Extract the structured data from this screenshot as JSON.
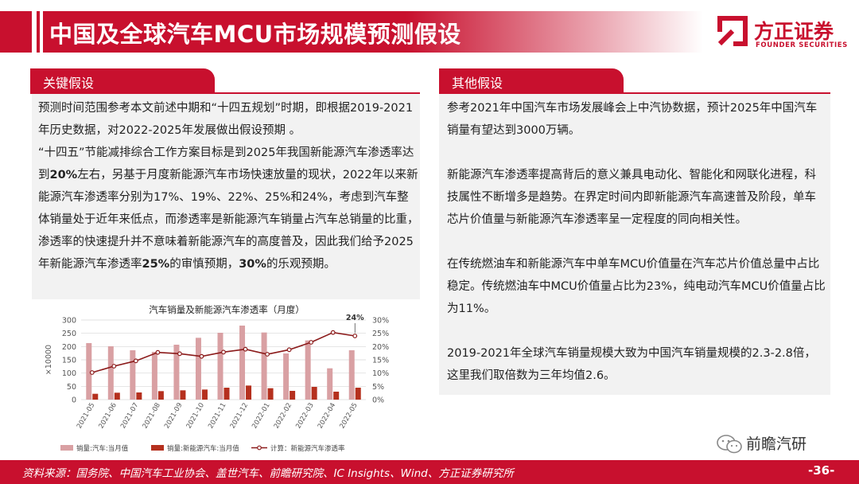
{
  "header": {
    "title": "中国及全球汽车MCU市场规模预测假设"
  },
  "logo": {
    "cn": "方正证券",
    "en": "FOUNDER SECURITIES",
    "icon": "founder-logo-icon"
  },
  "left": {
    "tab": "关键假设",
    "p1": "预测时间范围参考本文前述中期和“十四五规划”时期，即根据2019-2021年历史数据，对2022-2025年发展做出假设预期 。",
    "p2_a": "“十四五”节能减排综合工作方案目标是到2025年我国新能源汽车渗透率达到",
    "p2_b": "20%",
    "p2_c": "左右，另基于月度新能源汽车市场快速放量的现状，2022年以来新能源汽车渗透率分别为17%、19%、22%、25%和24%，考虑到汽车整体销量处于近年来低点，而渗透率是新能源汽车销量占汽车总销量的比重，渗透率的快速提升并不意味着新能源汽车的高度普及，因此我们给予2025年新能源汽车渗透率",
    "p2_d": "25%",
    "p2_e": "的审慎预期，",
    "p2_f": "30%",
    "p2_g": "的乐观预期。"
  },
  "right": {
    "tab": "其他假设",
    "p1": "参考2021年中国汽车市场发展峰会上中汽协数据，预计2025年中国汽车销量有望达到3000万辆。",
    "p2": "新能源汽车渗透率提高背后的意义兼具电动化、智能化和网联化进程，科技属性不断增多是趋势。在界定时间内即新能源汽车高速普及阶段，单车芯片价值量与新能源汽车渗透率呈一定程度的同向相关性。",
    "p3": "在传统燃油车和新能源汽车中单车MCU价值量在汽车芯片价值总量中占比稳定。传统燃油车中MCU价值量占比为23%，纯电动汽车MCU价值量占比为11%。",
    "p4": "2019-2021年全球汽车销量规模大致为中国汽车销量规模的2.3-2.8倍，这里我们取倍数为三年均值2.6。"
  },
  "chart_data": {
    "type": "bar",
    "title": "汽车销量及新能源汽车渗透率（月度）",
    "ylabel": "×10000",
    "ylim": [
      0,
      300
    ],
    "y2lim": [
      0,
      30
    ],
    "yticks": [
      "0",
      "50",
      "100",
      "150",
      "200",
      "250",
      "300"
    ],
    "y2ticks": [
      "0%",
      "5%",
      "10%",
      "15%",
      "20%",
      "25%",
      "30%"
    ],
    "categories": [
      "2021-05",
      "2021-06",
      "2021-07",
      "2021-08",
      "2021-09",
      "2021-10",
      "2021-11",
      "2021-12",
      "2022-01",
      "2022-02",
      "2022-03",
      "2022-04",
      "2022-05"
    ],
    "series": [
      {
        "name": "销量:汽车:当月值",
        "kind": "bar",
        "color": "#d9a0a3",
        "values": [
          213,
          201,
          186,
          180,
          207,
          233,
          252,
          279,
          253,
          174,
          223,
          118,
          186
        ]
      },
      {
        "name": "销量:新能源汽车:当月值",
        "kind": "bar",
        "color": "#b5301e",
        "values": [
          22,
          26,
          27,
          32,
          35,
          38,
          45,
          53,
          43,
          33,
          48,
          30,
          45
        ]
      },
      {
        "name": "计算：新能源汽车渗透率",
        "kind": "line",
        "axis": "right",
        "color": "#8b1a1a",
        "values": [
          10.2,
          12.6,
          14.6,
          17.8,
          17.3,
          16.3,
          17.9,
          19.0,
          17.1,
          18.8,
          21.6,
          25.3,
          24.0
        ]
      }
    ],
    "annotation": "24%",
    "legend": "bottom"
  },
  "footer": {
    "source": "资料来源：国务院、中国汽车工业协会、盖世汽车、前瞻研究院、IC Insights、Wind、方正证券研究所",
    "page": "-36-"
  },
  "watermark": {
    "text": "前瞻汽研",
    "icon": "wechat-icon"
  }
}
